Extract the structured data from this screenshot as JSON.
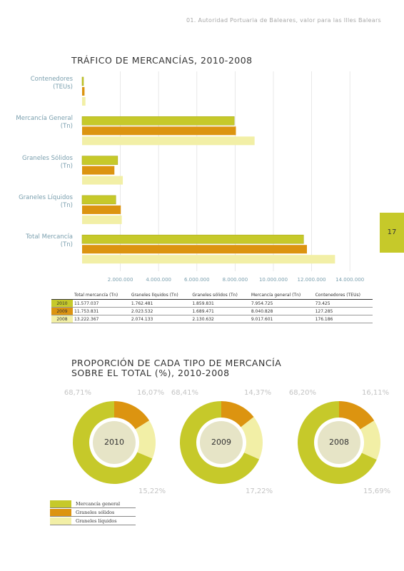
{
  "header": {
    "text": "01. Autoridad Portuaria de Baleares, valor para las Illes Balears",
    "page_number": "17"
  },
  "chart_data": [
    {
      "type": "bar",
      "orientation": "horizontal",
      "title": "TRÁFICO DE MERCANCÍAS, 2010-2008",
      "categories": [
        "Contenedores (TEUs)",
        "Mercancía General (Tn)",
        "Graneles Sólidos (Tn)",
        "Graneles Líquidos (Tn)",
        "Total Mercancía (Tn)"
      ],
      "series": [
        {
          "name": "2010",
          "color": "#c6c92a",
          "values": [
            73425,
            7954725,
            1859831,
            1762481,
            11577037
          ]
        },
        {
          "name": "2009",
          "color": "#dc9410",
          "values": [
            127285,
            8040828,
            1689471,
            2023532,
            11753831
          ]
        },
        {
          "name": "2008",
          "color": "#f2efa6",
          "values": [
            176186,
            9017601,
            2130632,
            2074133,
            13222367
          ]
        }
      ],
      "xlim": [
        0,
        15000000
      ],
      "xticks": [
        {
          "value": 2000000,
          "label": "2.000.000"
        },
        {
          "value": 4000000,
          "label": "4.000.000"
        },
        {
          "value": 6000000,
          "label": "6.000.000"
        },
        {
          "value": 8000000,
          "label": "8.000.000"
        },
        {
          "value": 10000000,
          "label": "10.000.000"
        },
        {
          "value": 12000000,
          "label": "12.000.000"
        },
        {
          "value": 14000000,
          "label": "14.000.000"
        }
      ],
      "grid": true
    },
    {
      "type": "pie",
      "donut": true,
      "title": "PROPORCIÓN DE CADA TIPO DE MERCANCÍA SOBRE EL TOTAL (%), 2010-2008",
      "categories": [
        "Mercancía general",
        "Graneles sólidos",
        "Graneles líquidos"
      ],
      "colors": [
        "#c6c92a",
        "#dc9410",
        "#f2efa6"
      ],
      "series": [
        {
          "name": "2010",
          "values": [
            68.71,
            16.07,
            15.22
          ],
          "value_labels": [
            "68,71%",
            "16,07%",
            "15,22%"
          ]
        },
        {
          "name": "2009",
          "values": [
            68.41,
            14.37,
            17.22
          ],
          "value_labels": [
            "68,41%",
            "14,37%",
            "17,22%"
          ]
        },
        {
          "name": "2008",
          "values": [
            68.2,
            16.11,
            15.69
          ],
          "value_labels": [
            "68,20%",
            "16,11%",
            "15,69%"
          ]
        }
      ]
    }
  ],
  "table": {
    "columns": [
      "Total mercancía (Tn)",
      "Graneles líquidos (Tn)",
      "Graneles sólidos (Tn)",
      "Mercancía general (Tn)",
      "Contenedores (TEUs)"
    ],
    "rows": [
      [
        "2010",
        "11.577.037",
        "1.762.481",
        "1.859.831",
        "7.954.725",
        "73.425"
      ],
      [
        "2009",
        "11.753.831",
        "2.023.532",
        "1.689.471",
        "8.040.828",
        "127.285"
      ],
      [
        "2008",
        "13.222.367",
        "2.074.133",
        "2.130.632",
        "9.017.601",
        "176.186"
      ]
    ]
  }
}
